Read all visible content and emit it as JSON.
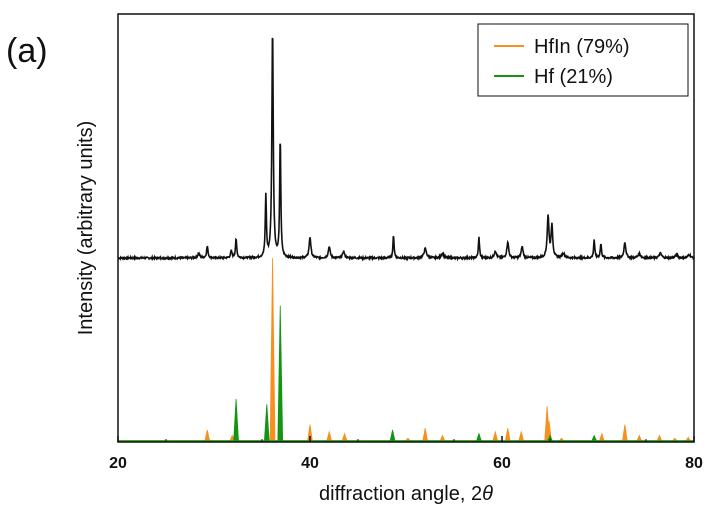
{
  "chart_data": {
    "type": "line",
    "panel_label": "(a)",
    "xlabel": "diffraction angle, 2",
    "xlabel_symbol": "θ",
    "ylabel": "Intensity (arbitrary units)",
    "xlim": [
      20,
      80
    ],
    "x_ticks": [
      20,
      40,
      60,
      80
    ],
    "grid": false,
    "legend_position": "top-right",
    "series": [
      {
        "name": "",
        "color": "#111111",
        "kind": "measured",
        "baseline": 0.02,
        "noise": 0.004,
        "peaks": [
          [
            28.4,
            0.02,
            0.25
          ],
          [
            29.3,
            0.05,
            0.18
          ],
          [
            31.8,
            0.03,
            0.18
          ],
          [
            32.3,
            0.08,
            0.16
          ],
          [
            35.4,
            0.27,
            0.14
          ],
          [
            36.1,
            1.0,
            0.17
          ],
          [
            36.9,
            0.52,
            0.14
          ],
          [
            40.0,
            0.09,
            0.22
          ],
          [
            42.0,
            0.05,
            0.22
          ],
          [
            43.5,
            0.03,
            0.22
          ],
          [
            48.7,
            0.1,
            0.14
          ],
          [
            52.0,
            0.04,
            0.3
          ],
          [
            53.8,
            0.02,
            0.3
          ],
          [
            57.6,
            0.09,
            0.14
          ],
          [
            59.3,
            0.03,
            0.25
          ],
          [
            60.6,
            0.07,
            0.22
          ],
          [
            62.1,
            0.05,
            0.22
          ],
          [
            64.8,
            0.18,
            0.22
          ],
          [
            65.2,
            0.14,
            0.2
          ],
          [
            66.4,
            0.02,
            0.3
          ],
          [
            69.6,
            0.08,
            0.14
          ],
          [
            70.3,
            0.06,
            0.16
          ],
          [
            72.8,
            0.07,
            0.22
          ],
          [
            74.3,
            0.02,
            0.3
          ],
          [
            76.5,
            0.02,
            0.3
          ],
          [
            78.2,
            0.015,
            0.3
          ],
          [
            79.5,
            0.015,
            0.3
          ]
        ]
      },
      {
        "name": "HfIn (79%)",
        "color": "#f7901e",
        "kind": "reference",
        "peaks": [
          [
            29.3,
            0.06
          ],
          [
            31.9,
            0.03
          ],
          [
            36.1,
            1.0
          ],
          [
            40.0,
            0.09
          ],
          [
            42.0,
            0.05
          ],
          [
            43.6,
            0.04
          ],
          [
            50.2,
            0.015
          ],
          [
            52.0,
            0.07
          ],
          [
            53.8,
            0.03
          ],
          [
            59.3,
            0.05
          ],
          [
            60.6,
            0.07
          ],
          [
            62.0,
            0.05
          ],
          [
            64.7,
            0.19
          ],
          [
            64.9,
            0.11
          ],
          [
            66.2,
            0.015
          ],
          [
            70.4,
            0.04
          ],
          [
            72.8,
            0.09
          ],
          [
            74.3,
            0.03
          ],
          [
            76.4,
            0.03
          ],
          [
            78.0,
            0.015
          ],
          [
            79.4,
            0.02
          ]
        ]
      },
      {
        "name": "Hf (21%)",
        "color": "#139413",
        "kind": "reference",
        "peaks": [
          [
            32.3,
            0.23
          ],
          [
            35.5,
            0.2
          ],
          [
            36.9,
            0.74
          ],
          [
            48.6,
            0.06
          ],
          [
            57.6,
            0.04
          ],
          [
            65.0,
            0.03
          ],
          [
            69.6,
            0.03
          ]
        ]
      }
    ]
  }
}
